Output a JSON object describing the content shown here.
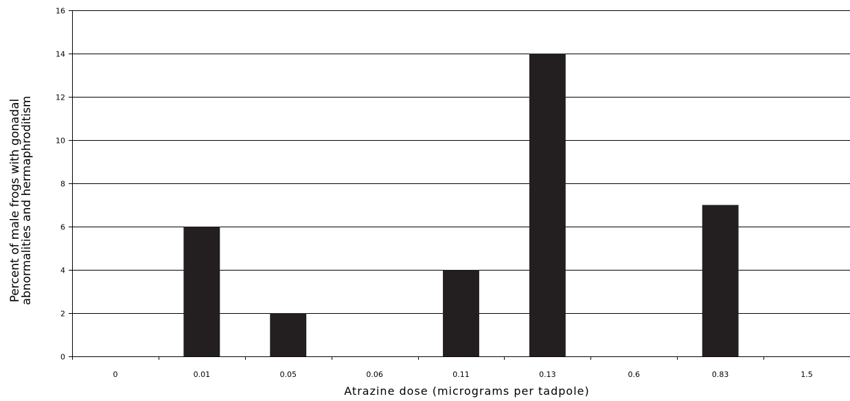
{
  "chart_data": {
    "type": "bar",
    "title": "",
    "categories": [
      "0",
      "0.01",
      "0.05",
      "0.06",
      "0.11",
      "0.13",
      "0.6",
      "0.83",
      "1.5"
    ],
    "values": [
      0,
      6,
      2,
      0,
      4,
      14,
      0,
      7,
      0
    ],
    "xlabel": "Atrazine dose (micrograms per tadpole)",
    "ylabel_lines": [
      "Percent of male frogs with gonadal",
      "abnormalities and hermaphroditism"
    ],
    "ylim": [
      0,
      16
    ],
    "yticks": [
      "0",
      "2",
      "4",
      "6",
      "8",
      "10",
      "12",
      "14",
      "16"
    ],
    "grid": true,
    "legend": "none",
    "bar_color": "#231f20",
    "grid_color": "#000000"
  }
}
